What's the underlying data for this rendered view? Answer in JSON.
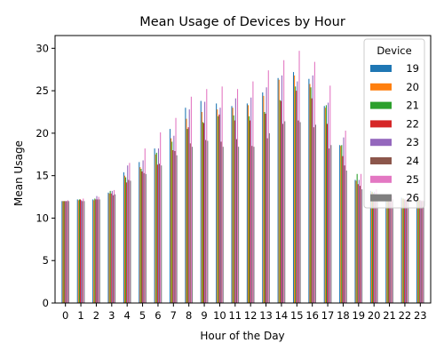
{
  "chart_data": {
    "type": "bar",
    "title": "Mean Usage of Devices by Hour",
    "xlabel": "Hour of the Day",
    "ylabel": "Mean Usage",
    "ylim": [
      0,
      31.5
    ],
    "yticks": [
      0,
      5,
      10,
      15,
      20,
      25,
      30
    ],
    "grid": false,
    "legend": {
      "title": "Device",
      "placement": "top-right"
    },
    "categories": [
      "0",
      "1",
      "2",
      "3",
      "4",
      "5",
      "6",
      "7",
      "8",
      "9",
      "10",
      "11",
      "12",
      "13",
      "14",
      "15",
      "16",
      "17",
      "18",
      "19",
      "20",
      "21",
      "22",
      "23"
    ],
    "series": [
      {
        "name": "19",
        "color": "#1f77b4",
        "values": [
          12.0,
          12.2,
          12.2,
          13.0,
          15.4,
          16.6,
          18.2,
          20.5,
          23.0,
          23.8,
          23.5,
          23.2,
          23.5,
          24.8,
          26.5,
          27.2,
          26.4,
          23.2,
          18.6,
          14.5,
          13.2,
          12.6,
          12.4,
          12.1
        ]
      },
      {
        "name": "20",
        "color": "#ff7f0e",
        "values": [
          12.0,
          12.1,
          12.1,
          12.9,
          15.0,
          16.0,
          17.5,
          19.4,
          21.7,
          22.5,
          22.8,
          23.0,
          23.3,
          24.4,
          26.3,
          26.8,
          25.8,
          23.0,
          18.5,
          14.4,
          13.1,
          12.5,
          12.3,
          12.1
        ]
      },
      {
        "name": "21",
        "color": "#2ca02c",
        "values": [
          12.0,
          12.2,
          12.3,
          13.2,
          14.8,
          15.8,
          17.7,
          19.0,
          20.5,
          21.3,
          22.0,
          22.1,
          22.0,
          22.5,
          23.9,
          25.5,
          25.4,
          23.3,
          18.6,
          15.2,
          13.1,
          12.5,
          12.3,
          12.1
        ]
      },
      {
        "name": "22",
        "color": "#d62728",
        "values": [
          12.0,
          12.2,
          12.2,
          12.9,
          14.2,
          15.5,
          16.3,
          18.0,
          20.7,
          21.2,
          22.2,
          21.5,
          21.5,
          22.3,
          23.8,
          25.0,
          24.1,
          21.1,
          17.3,
          14.0,
          12.9,
          12.4,
          12.2,
          12.1
        ]
      },
      {
        "name": "23",
        "color": "#9467bd",
        "values": [
          12.0,
          12.1,
          12.6,
          13.2,
          16.2,
          16.8,
          18.2,
          19.7,
          22.8,
          23.7,
          23.0,
          24.1,
          24.2,
          25.4,
          26.8,
          26.1,
          26.8,
          23.6,
          19.5,
          14.5,
          13.1,
          12.5,
          12.2,
          12.1
        ]
      },
      {
        "name": "24",
        "color": "#8c564b",
        "values": [
          12.0,
          12.0,
          12.2,
          12.7,
          14.5,
          15.3,
          16.4,
          17.9,
          18.8,
          19.2,
          19.0,
          19.3,
          18.5,
          19.4,
          21.1,
          21.5,
          20.7,
          18.2,
          16.2,
          13.8,
          12.8,
          12.3,
          12.1,
          12.0
        ]
      },
      {
        "name": "25",
        "color": "#e377c2",
        "values": [
          12.1,
          12.3,
          12.5,
          13.3,
          16.5,
          18.2,
          20.1,
          21.8,
          24.3,
          25.2,
          25.5,
          25.2,
          26.1,
          27.4,
          28.6,
          29.7,
          28.4,
          25.6,
          20.3,
          15.2,
          13.4,
          12.7,
          12.4,
          12.1
        ]
      },
      {
        "name": "26",
        "color": "#7f7f7f",
        "values": [
          12.0,
          12.0,
          12.2,
          12.8,
          14.4,
          15.2,
          16.2,
          17.4,
          18.4,
          19.1,
          18.4,
          18.4,
          18.4,
          20.0,
          21.4,
          21.3,
          21.0,
          18.6,
          15.6,
          13.4,
          12.6,
          12.2,
          12.1,
          12.0
        ]
      }
    ]
  }
}
